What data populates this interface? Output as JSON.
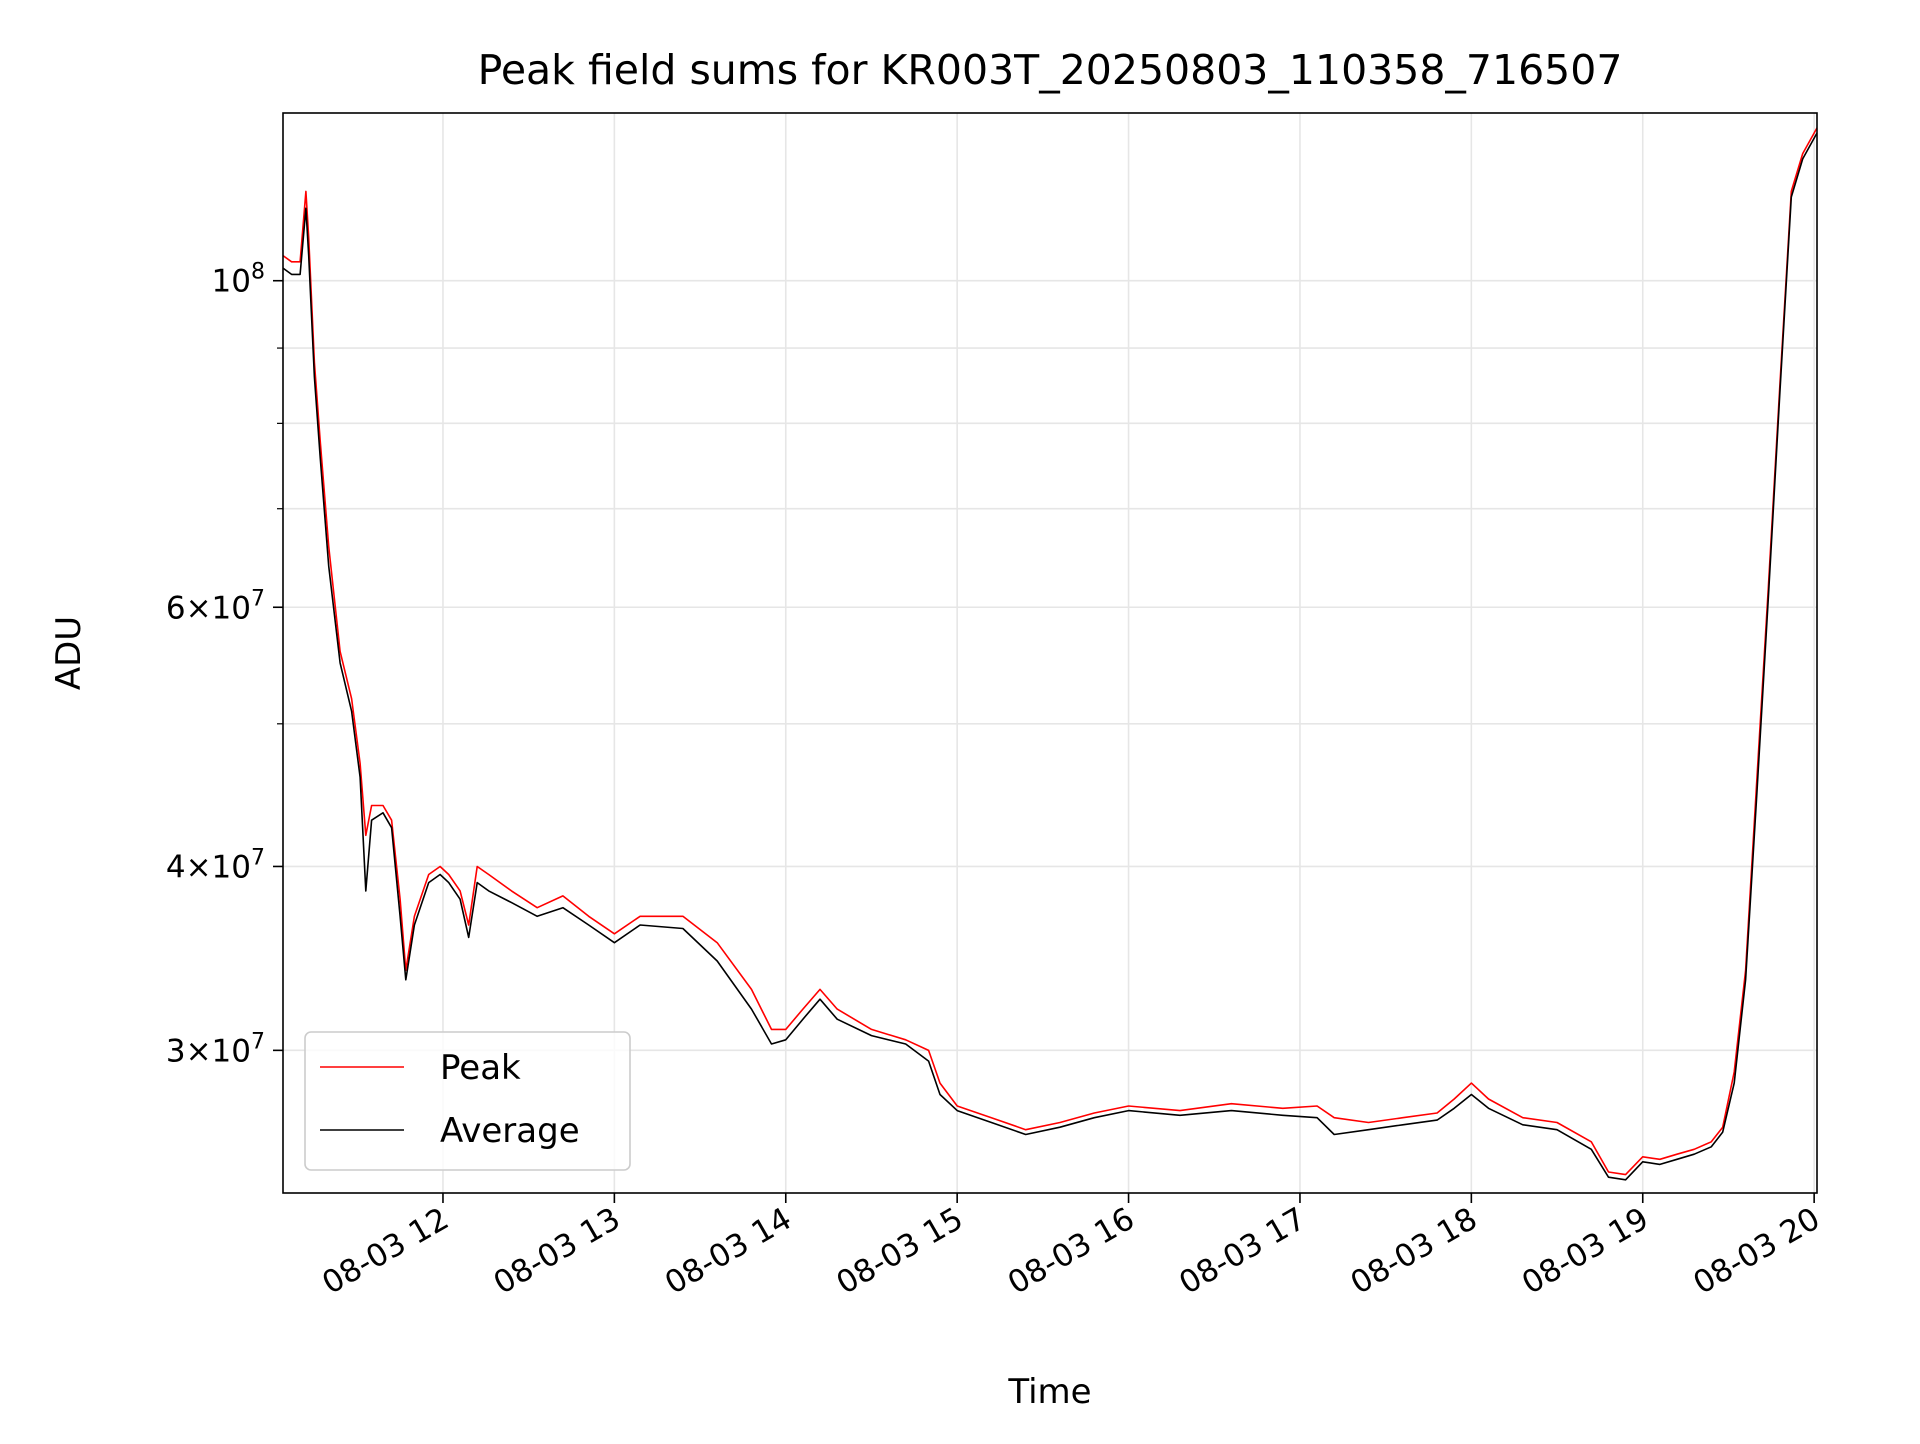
{
  "chart_data": {
    "type": "line",
    "title": "Peak field sums for KR003T_20250803_110358_716507",
    "xlabel": "Time",
    "ylabel": "ADU",
    "scale": {
      "x": "time",
      "y": "log"
    },
    "xlim": [
      "2025-08-03 11:04",
      "2025-08-03 20:01"
    ],
    "ylim": [
      24000000,
      130000000
    ],
    "x_ticks": [
      {
        "t": "2025-08-03 12:00",
        "label": "08-03 12"
      },
      {
        "t": "2025-08-03 13:00",
        "label": "08-03 13"
      },
      {
        "t": "2025-08-03 14:00",
        "label": "08-03 14"
      },
      {
        "t": "2025-08-03 15:00",
        "label": "08-03 15"
      },
      {
        "t": "2025-08-03 16:00",
        "label": "08-03 16"
      },
      {
        "t": "2025-08-03 17:00",
        "label": "08-03 17"
      },
      {
        "t": "2025-08-03 18:00",
        "label": "08-03 18"
      },
      {
        "t": "2025-08-03 19:00",
        "label": "08-03 19"
      },
      {
        "t": "2025-08-03 20:00",
        "label": "08-03 20"
      }
    ],
    "y_ticks": [
      {
        "v": 30000000,
        "base": "3×10",
        "exp": "7"
      },
      {
        "v": 40000000,
        "base": "4×10",
        "exp": "7"
      },
      {
        "v": 60000000,
        "base": "6×10",
        "exp": "7"
      },
      {
        "v": 100000000,
        "base": "10",
        "exp": "8"
      }
    ],
    "y_minor_ticks": [
      50000000,
      70000000,
      80000000,
      90000000
    ],
    "grid": true,
    "legend": "lower-left",
    "x": [
      "2025-08-03 11:04",
      "2025-08-03 11:07",
      "2025-08-03 11:10",
      "2025-08-03 11:12",
      "2025-08-03 11:13",
      "2025-08-03 11:15",
      "2025-08-03 11:17",
      "2025-08-03 11:20",
      "2025-08-03 11:24",
      "2025-08-03 11:28",
      "2025-08-03 11:31",
      "2025-08-03 11:33",
      "2025-08-03 11:35",
      "2025-08-03 11:39",
      "2025-08-03 11:42",
      "2025-08-03 11:45",
      "2025-08-03 11:47",
      "2025-08-03 11:50",
      "2025-08-03 11:55",
      "2025-08-03 11:59",
      "2025-08-03 12:02",
      "2025-08-03 12:06",
      "2025-08-03 12:09",
      "2025-08-03 12:12",
      "2025-08-03 12:16",
      "2025-08-03 12:24",
      "2025-08-03 12:33",
      "2025-08-03 12:42",
      "2025-08-03 12:51",
      "2025-08-03 13:00",
      "2025-08-03 13:09",
      "2025-08-03 13:24",
      "2025-08-03 13:36",
      "2025-08-03 13:48",
      "2025-08-03 13:55",
      "2025-08-03 14:00",
      "2025-08-03 14:06",
      "2025-08-03 14:12",
      "2025-08-03 14:18",
      "2025-08-03 14:30",
      "2025-08-03 14:42",
      "2025-08-03 14:50",
      "2025-08-03 14:54",
      "2025-08-03 15:00",
      "2025-08-03 15:12",
      "2025-08-03 15:24",
      "2025-08-03 15:36",
      "2025-08-03 15:48",
      "2025-08-03 16:00",
      "2025-08-03 16:18",
      "2025-08-03 16:36",
      "2025-08-03 16:54",
      "2025-08-03 17:06",
      "2025-08-03 17:12",
      "2025-08-03 17:24",
      "2025-08-03 17:36",
      "2025-08-03 17:48",
      "2025-08-03 17:54",
      "2025-08-03 18:00",
      "2025-08-03 18:06",
      "2025-08-03 18:18",
      "2025-08-03 18:30",
      "2025-08-03 18:42",
      "2025-08-03 18:48",
      "2025-08-03 18:54",
      "2025-08-03 19:00",
      "2025-08-03 19:06",
      "2025-08-03 19:12",
      "2025-08-03 19:18",
      "2025-08-03 19:24",
      "2025-08-03 19:28",
      "2025-08-03 19:32",
      "2025-08-03 19:36",
      "2025-08-03 19:40",
      "2025-08-03 19:44",
      "2025-08-03 19:48",
      "2025-08-03 19:52",
      "2025-08-03 19:56",
      "2025-08-03 20:01"
    ],
    "series": [
      {
        "name": "Peak",
        "color": "#ff0000",
        "values": [
          104000000,
          103000000,
          103000000,
          115000000,
          107000000,
          88000000,
          78000000,
          66000000,
          56000000,
          52000000,
          47000000,
          42000000,
          44000000,
          44000000,
          43000000,
          38000000,
          34000000,
          37000000,
          39500000,
          40000000,
          39500000,
          38500000,
          36500000,
          40000000,
          39500000,
          38500000,
          37500000,
          38200000,
          37000000,
          36000000,
          37000000,
          37000000,
          35500000,
          33000000,
          31000000,
          31000000,
          32000000,
          33000000,
          32000000,
          31000000,
          30500000,
          30000000,
          28500000,
          27500000,
          27000000,
          26500000,
          26800000,
          27200000,
          27500000,
          27300000,
          27600000,
          27400000,
          27500000,
          27000000,
          26800000,
          27000000,
          27200000,
          27800000,
          28500000,
          27800000,
          27000000,
          26800000,
          26000000,
          24800000,
          24700000,
          25400000,
          25300000,
          25500000,
          25700000,
          26000000,
          26600000,
          29000000,
          34000000,
          46000000,
          62000000,
          85000000,
          115000000,
          122000000,
          127000000
        ]
      },
      {
        "name": "Average",
        "color": "#000000",
        "values": [
          102000000,
          101000000,
          101000000,
          112000000,
          104000000,
          86000000,
          76000000,
          64000000,
          55000000,
          51000000,
          46000000,
          38500000,
          43000000,
          43500000,
          42500000,
          37000000,
          33500000,
          36500000,
          39000000,
          39500000,
          39000000,
          38000000,
          35800000,
          39000000,
          38500000,
          37800000,
          37000000,
          37500000,
          36500000,
          35500000,
          36500000,
          36300000,
          34500000,
          32000000,
          30300000,
          30500000,
          31500000,
          32500000,
          31500000,
          30700000,
          30300000,
          29500000,
          28000000,
          27300000,
          26800000,
          26300000,
          26600000,
          27000000,
          27300000,
          27100000,
          27300000,
          27100000,
          27000000,
          26300000,
          26500000,
          26700000,
          26900000,
          27400000,
          28000000,
          27400000,
          26700000,
          26500000,
          25700000,
          24600000,
          24500000,
          25200000,
          25100000,
          25300000,
          25500000,
          25800000,
          26400000,
          28500000,
          33500000,
          45000000,
          61000000,
          84000000,
          114000000,
          121000000,
          126000000
        ]
      }
    ]
  }
}
